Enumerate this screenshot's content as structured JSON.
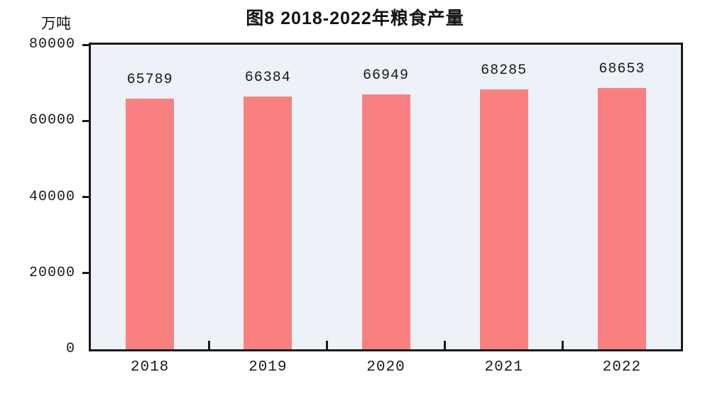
{
  "chart_data": {
    "type": "bar",
    "title": "图8  2018-2022年粮食产量",
    "ylabel": "万吨",
    "xlabel": "",
    "categories": [
      "2018",
      "2019",
      "2020",
      "2021",
      "2022"
    ],
    "values": [
      65789,
      66384,
      66949,
      68285,
      68653
    ],
    "value_labels_shown": true,
    "ylim": [
      0,
      80000
    ],
    "yticks": [
      0,
      20000,
      40000,
      60000,
      80000
    ],
    "grid": false,
    "legend": "none",
    "bar_color": "#FA8080",
    "plot_background": "#EDF2F8",
    "axis_color": "#1A1A1A",
    "text_color": "#1A1A1A"
  }
}
